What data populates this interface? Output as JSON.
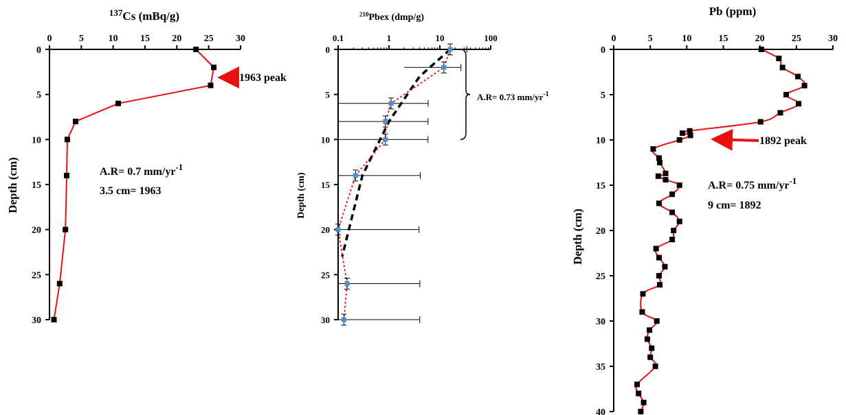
{
  "chart_data": [
    {
      "type": "line",
      "title": "",
      "xlabel_sup": "137",
      "xlabel_main": "Cs (mBq/g)",
      "ylabel": "Depth (cm)",
      "xlim": [
        0,
        30
      ],
      "ylim": [
        0,
        30
      ],
      "x_ticks": [
        "0",
        "5",
        "10",
        "15",
        "20",
        "25",
        "30"
      ],
      "y_ticks": [
        "0",
        "5",
        "10",
        "15",
        "20",
        "25",
        "30"
      ],
      "series": [
        {
          "color": "#e81010",
          "marker": "square",
          "x": [
            23.0,
            25.8,
            25.3,
            10.8,
            4.1,
            2.8,
            2.7,
            2.5,
            1.6,
            0.7
          ],
          "y": [
            0,
            2,
            4,
            6,
            8,
            10,
            14,
            20,
            26,
            30
          ]
        }
      ],
      "annotations": {
        "peak_label": "1963 peak",
        "rate_main": "A.R= 0.7 mm/yr",
        "rate_exp": "-1",
        "date_label": "3.5 cm= 1963"
      }
    },
    {
      "type": "scatter",
      "title": "",
      "xlabel_sup": "210",
      "xlabel_main": "Pbex (dmp/g)",
      "ylabel": "Depth (cm)",
      "xscale": "log",
      "xlim": [
        0.1,
        100
      ],
      "ylim": [
        0,
        30
      ],
      "x_ticks": [
        "0.1",
        "1",
        "10",
        "100"
      ],
      "y_ticks": [
        "0",
        "5",
        "10",
        "15",
        "20",
        "25",
        "30"
      ],
      "series": [
        {
          "color": "#4f8fd6",
          "line_color": "#e81010",
          "line_style": "dotted",
          "marker": "square",
          "x": [
            16.0,
            12.0,
            1.1,
            0.85,
            0.85,
            0.22,
            0.1,
            0.15,
            0.13
          ],
          "y": [
            0,
            2,
            6,
            8,
            10,
            14,
            20,
            26,
            30
          ],
          "err_plus": [
            18.0,
            14.0,
            4.8,
            5.0,
            5.0,
            3.9,
            3.8,
            3.9,
            3.9
          ],
          "err_minus": [
            14.5,
            10.0,
            1.0,
            0.78,
            0.78,
            0.2,
            0.1,
            0.14,
            0.12
          ]
        },
        {
          "color": "#000000",
          "line_style": "dashed",
          "x": [
            16.0,
            4.0,
            1.0,
            0.3,
            0.18,
            0.12
          ],
          "y": [
            0,
            3,
            8,
            14,
            19,
            23
          ]
        }
      ],
      "annotations": {
        "rate_main": "A.R= 0.73 mm/yr",
        "rate_exp": "-1",
        "brace_y_range": [
          0,
          10
        ]
      }
    },
    {
      "type": "line",
      "title": "",
      "xlabel": "Pb (ppm)",
      "ylabel": "Depth (cm)",
      "xlim": [
        0,
        30
      ],
      "ylim": [
        0,
        40
      ],
      "x_ticks": [
        "0",
        "5",
        "10",
        "15",
        "20",
        "25",
        "30"
      ],
      "y_ticks": [
        "0",
        "5",
        "10",
        "15",
        "20",
        "25",
        "30",
        "35",
        "40"
      ],
      "series": [
        {
          "color": "#e81010",
          "marker": "square",
          "x": [
            20.2,
            22.6,
            23.1,
            25.2,
            26.1,
            23.6,
            25.3,
            22.8,
            20.1,
            10.4,
            9.4,
            10.5,
            9.0,
            5.4,
            6.2,
            6.3,
            7.1,
            6.1,
            7.1,
            9.0,
            8.0,
            6.2,
            8.0,
            9.0,
            8.2,
            8.0,
            5.8,
            6.2,
            7.0,
            6.2,
            6.3,
            4.0,
            3.9,
            5.9,
            4.9,
            4.6,
            5.2,
            5.0,
            5.7,
            3.2,
            3.4,
            4.1,
            3.7
          ],
          "y": [
            0,
            1,
            2,
            3,
            4,
            5,
            6,
            7,
            8,
            9,
            9.25,
            9.5,
            10,
            11,
            12,
            12.5,
            13.7,
            14,
            14.4,
            15,
            16,
            17,
            18,
            19,
            20,
            21,
            22,
            23,
            24,
            25,
            26,
            27,
            29,
            30,
            31,
            32,
            33,
            34,
            35,
            37,
            38,
            39,
            40
          ]
        }
      ],
      "annotations": {
        "peak_label": "1892 peak",
        "rate_main": "A.R= 0.75 mm/yr",
        "rate_exp": "-1",
        "date_label": "9 cm= 1892"
      }
    }
  ]
}
